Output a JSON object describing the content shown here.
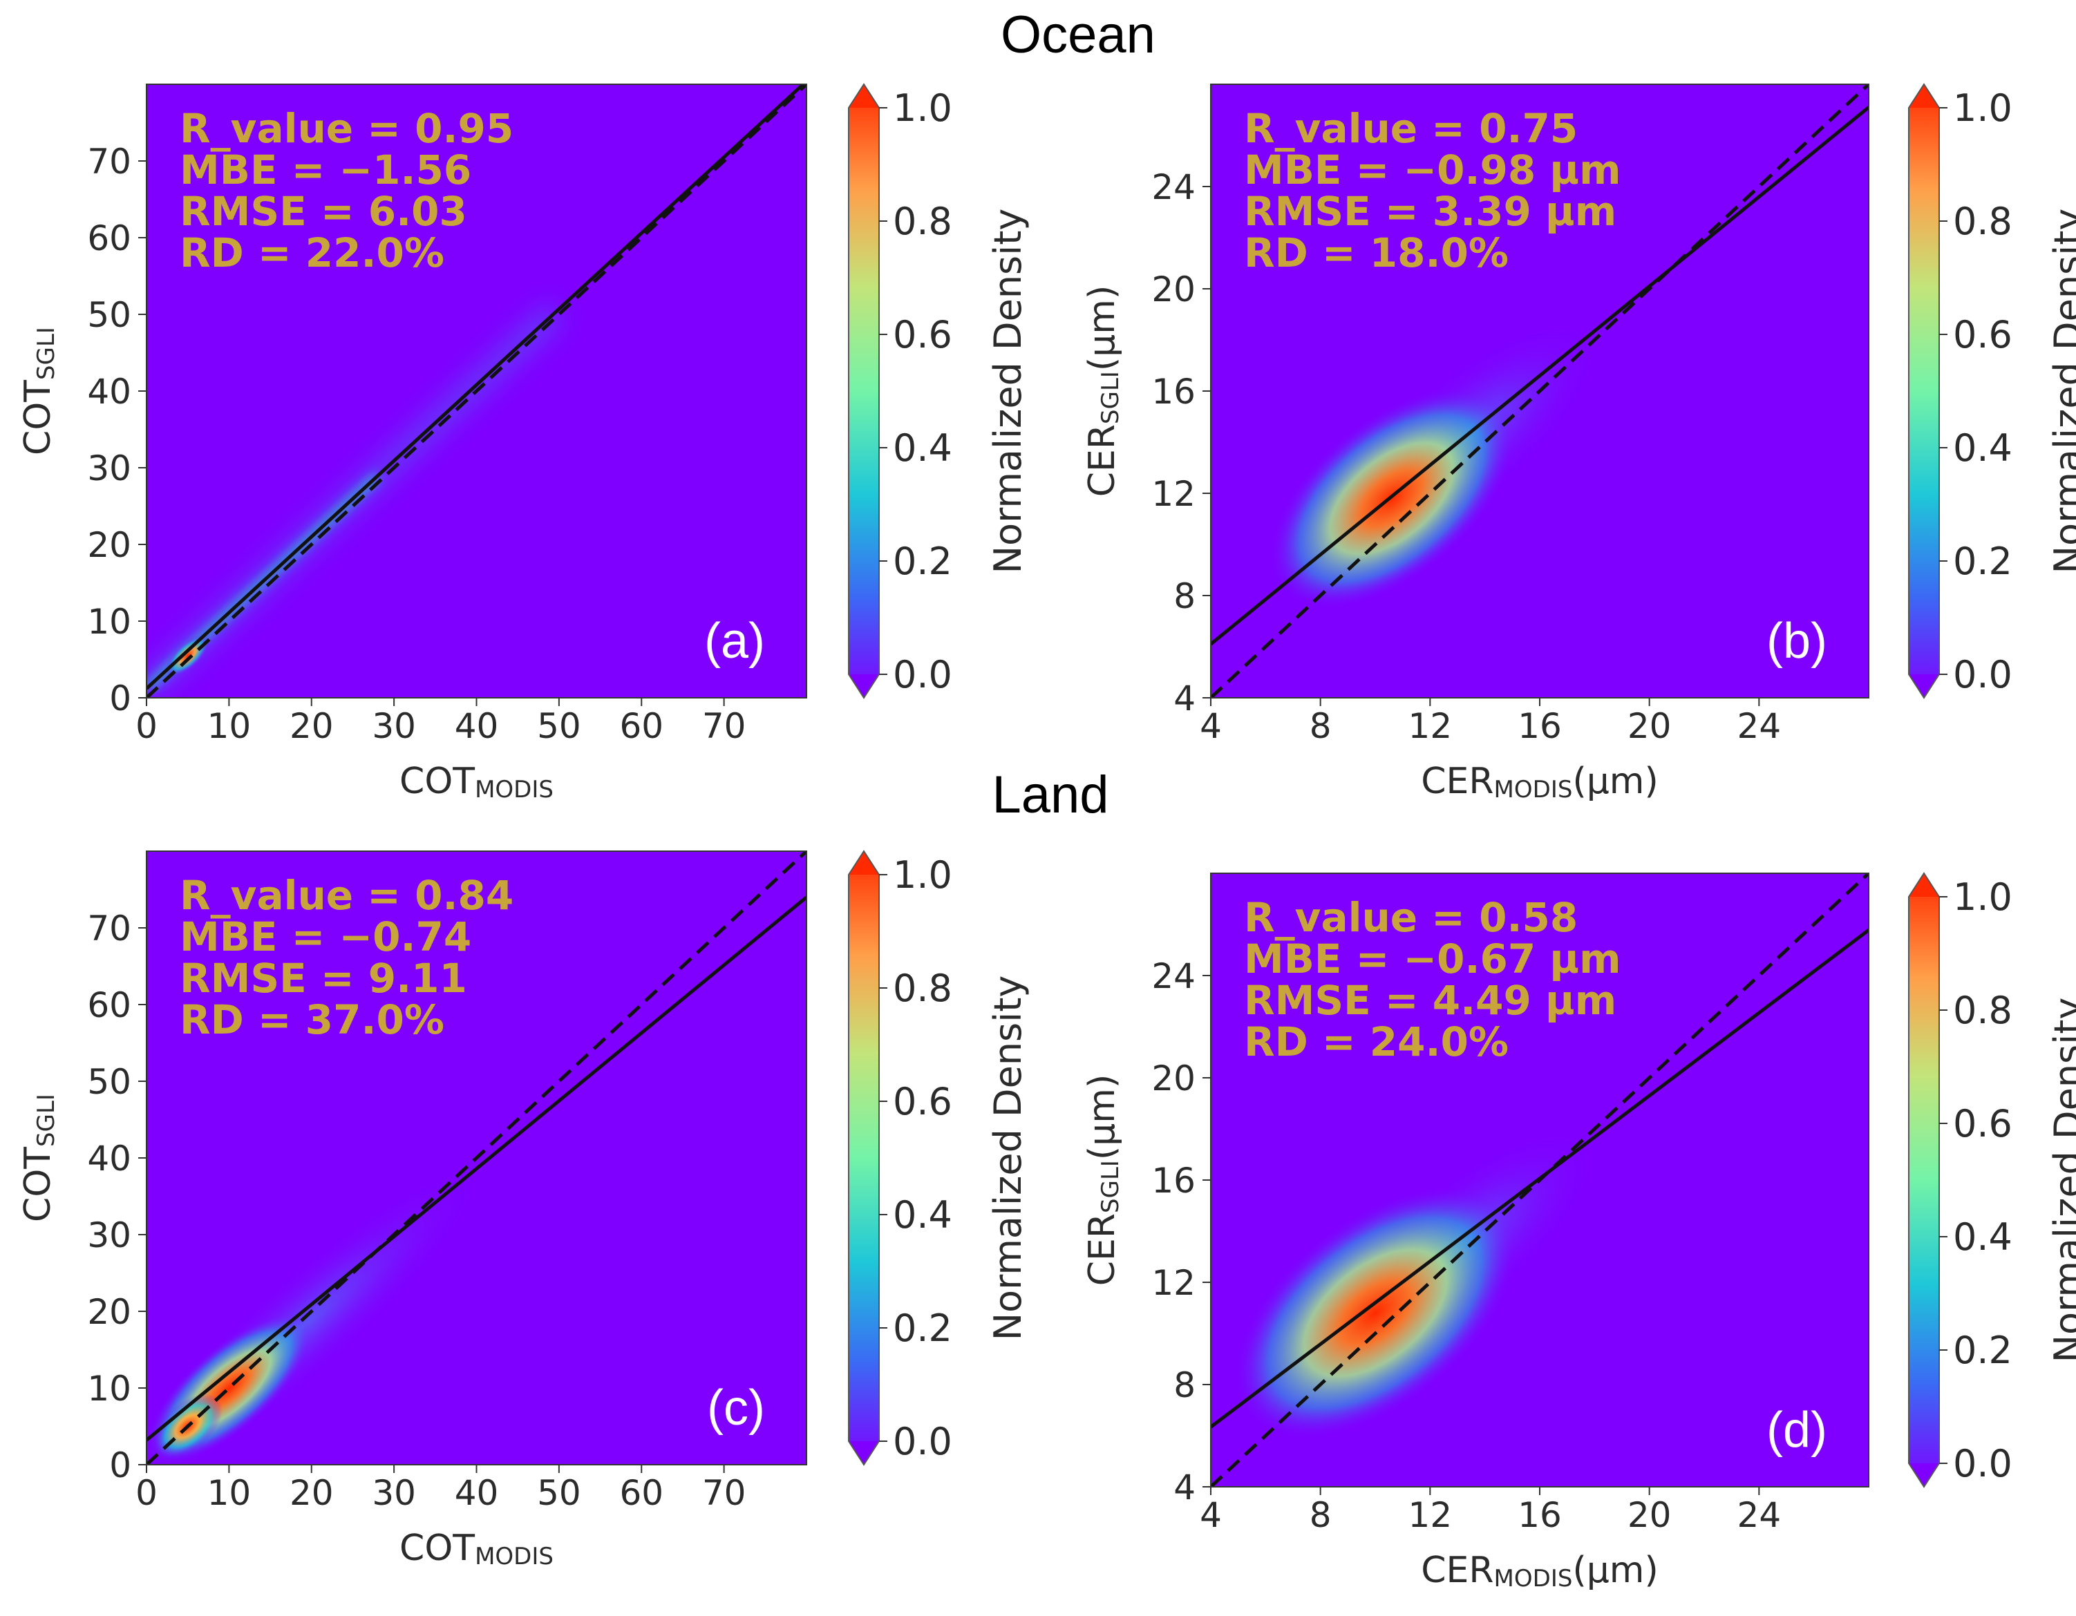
{
  "section_titles": {
    "ocean": "Ocean",
    "land": "Land"
  },
  "colorbar": {
    "label": "Normalized Density",
    "ticks": [
      "0.0",
      "0.2",
      "0.4",
      "0.6",
      "0.8",
      "1.0"
    ],
    "colors": [
      "#7f00ff",
      "#3a6cf4",
      "#1fc7d8",
      "#74f3a8",
      "#c3e47a",
      "#ff9f4a",
      "#ff2a00"
    ]
  },
  "chart_data": [
    {
      "id": "a",
      "type": "heatmap",
      "panel_label": "(a)",
      "xlabel_main": "COT",
      "xlabel_sub": "MODIS",
      "xlabel_unit": "",
      "ylabel_main": "COT",
      "ylabel_sub": "SGLI",
      "ylabel_unit": "",
      "xlim": [
        0,
        80
      ],
      "ylim": [
        0,
        80
      ],
      "xticks": [
        "0",
        "10",
        "20",
        "30",
        "40",
        "50",
        "60",
        "70"
      ],
      "yticks": [
        "0",
        "10",
        "20",
        "30",
        "40",
        "50",
        "60",
        "70"
      ],
      "stats": [
        "R_value = 0.95",
        "MBE = −1.56",
        "RMSE = 6.03",
        "RD = 22.0%"
      ],
      "fit_line": {
        "slope": 0.99,
        "intercept": 1.2
      },
      "one_to_one": true,
      "density_hotspot": {
        "x": 5,
        "y": 5.5,
        "peak": 1.0
      },
      "background_color": "#7f00ff"
    },
    {
      "id": "b",
      "type": "heatmap",
      "panel_label": "(b)",
      "xlabel_main": "CER",
      "xlabel_sub": "MODIS",
      "xlabel_unit": "(µm)",
      "ylabel_main": "CER",
      "ylabel_sub": "SGLI",
      "ylabel_unit": "(µm)",
      "xlim": [
        4,
        28
      ],
      "ylim": [
        4,
        28
      ],
      "xticks": [
        "4",
        "8",
        "12",
        "16",
        "20",
        "24"
      ],
      "yticks": [
        "4",
        "8",
        "12",
        "16",
        "20",
        "24"
      ],
      "stats": [
        "R_value = 0.75",
        "MBE = −0.98 µm",
        "RMSE = 3.39 µm",
        "RD = 18.0%"
      ],
      "fit_line": {
        "slope": 0.875,
        "intercept": 2.6
      },
      "one_to_one": true,
      "density_hotspot": {
        "x": 10.6,
        "y": 11.8,
        "peak": 1.0
      },
      "background_color": "#7f00ff"
    },
    {
      "id": "c",
      "type": "heatmap",
      "panel_label": "(c)",
      "xlabel_main": "COT",
      "xlabel_sub": "MODIS",
      "xlabel_unit": "",
      "ylabel_main": "COT",
      "ylabel_sub": "SGLI",
      "ylabel_unit": "",
      "xlim": [
        0,
        80
      ],
      "ylim": [
        0,
        80
      ],
      "xticks": [
        "0",
        "10",
        "20",
        "30",
        "40",
        "50",
        "60",
        "70"
      ],
      "yticks": [
        "0",
        "10",
        "20",
        "30",
        "40",
        "50",
        "60",
        "70"
      ],
      "stats": [
        "R_value = 0.84",
        "MBE = −0.74",
        "RMSE = 9.11",
        "RD = 37.0%"
      ],
      "fit_line": {
        "slope": 0.885,
        "intercept": 3.2
      },
      "one_to_one": true,
      "density_hotspot": {
        "x": 5,
        "y": 5,
        "peak": 1.0
      },
      "background_color": "#7f00ff"
    },
    {
      "id": "d",
      "type": "heatmap",
      "panel_label": "(d)",
      "xlabel_main": "CER",
      "xlabel_sub": "MODIS",
      "xlabel_unit": "(µm)",
      "ylabel_main": "CER",
      "ylabel_sub": "SGLI",
      "ylabel_unit": "(µm)",
      "xlim": [
        4,
        28
      ],
      "ylim": [
        4,
        28
      ],
      "xticks": [
        "4",
        "8",
        "12",
        "16",
        "20",
        "24"
      ],
      "yticks": [
        "4",
        "8",
        "12",
        "16",
        "20",
        "24"
      ],
      "stats": [
        "R_value = 0.58",
        "MBE = −0.67 µm",
        "RMSE = 4.49 µm",
        "RD = 24.0%"
      ],
      "fit_line": {
        "slope": 0.81,
        "intercept": 3.1
      },
      "one_to_one": true,
      "density_hotspot": {
        "x": 10,
        "y": 10.8,
        "peak": 1.0
      },
      "background_color": "#7f00ff"
    }
  ]
}
